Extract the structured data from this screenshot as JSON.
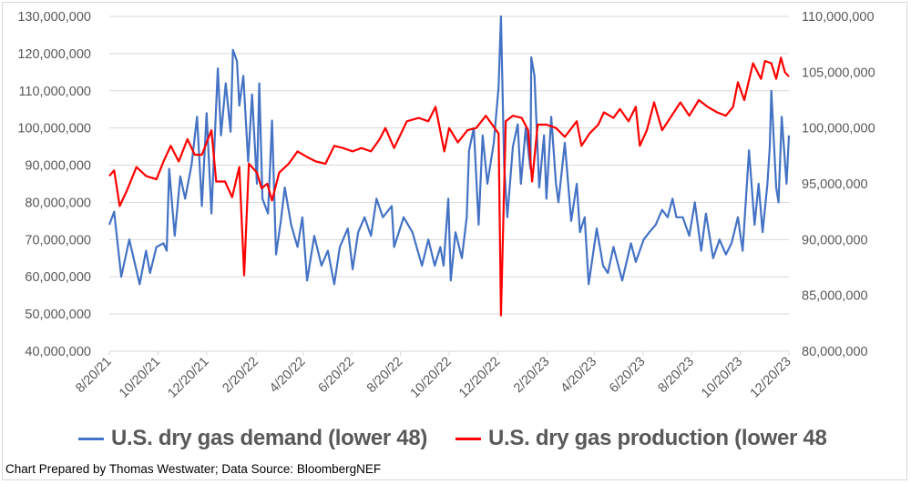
{
  "chart_data": {
    "type": "line",
    "title": "",
    "xlabel": "",
    "ylabel": "",
    "x_tick_labels": [
      "8/20/21",
      "10/20/21",
      "12/20/21",
      "2/20/22",
      "4/20/22",
      "6/20/22",
      "8/20/22",
      "10/20/22",
      "12/20/22",
      "2/20/23",
      "4/20/23",
      "6/20/23",
      "8/20/23",
      "10/20/23",
      "12/20/23"
    ],
    "x_ticks": [
      "2021-08-20",
      "2021-10-20",
      "2021-12-20",
      "2022-02-20",
      "2022-04-20",
      "2022-06-20",
      "2022-08-20",
      "2022-10-20",
      "2022-12-20",
      "2023-02-20",
      "2023-04-20",
      "2023-06-20",
      "2023-08-20",
      "2023-10-20",
      "2023-12-20"
    ],
    "xlim": [
      "2021-08-20",
      "2023-12-20"
    ],
    "y_left": {
      "ylim": [
        40000000,
        130000000
      ],
      "tick_labels": [
        "40,000,000",
        "50,000,000",
        "60,000,000",
        "70,000,000",
        "80,000,000",
        "90,000,000",
        "100,000,000",
        "110,000,000",
        "120,000,000",
        "130,000,000"
      ]
    },
    "y_right": {
      "ylim": [
        80000000,
        110000000
      ],
      "tick_labels": [
        "80,000,000",
        "85,000,000",
        "90,000,000",
        "95,000,000",
        "100,000,000",
        "105,000,000",
        "110,000,000"
      ]
    },
    "grid": true,
    "legend_position": "bottom",
    "series": [
      {
        "name": "U.S. dry gas demand (lower 48)",
        "axis": "left",
        "color": "#4472C4",
        "points": [
          [
            "2021-08-20",
            74000000
          ],
          [
            "2021-08-26",
            77500000
          ],
          [
            "2021-09-04",
            60000000
          ],
          [
            "2021-09-14",
            70000000
          ],
          [
            "2021-09-27",
            58000000
          ],
          [
            "2021-10-05",
            67000000
          ],
          [
            "2021-10-10",
            61000000
          ],
          [
            "2021-10-18",
            68000000
          ],
          [
            "2021-10-27",
            69000000
          ],
          [
            "2021-10-31",
            67000000
          ],
          [
            "2021-11-03",
            89000000
          ],
          [
            "2021-11-10",
            71000000
          ],
          [
            "2021-11-17",
            87000000
          ],
          [
            "2021-11-23",
            81000000
          ],
          [
            "2021-12-01",
            90000000
          ],
          [
            "2021-12-08",
            103000000
          ],
          [
            "2021-12-14",
            79000000
          ],
          [
            "2021-12-20",
            104000000
          ],
          [
            "2021-12-26",
            77000000
          ],
          [
            "2022-01-03",
            116000000
          ],
          [
            "2022-01-07",
            98000000
          ],
          [
            "2022-01-13",
            112000000
          ],
          [
            "2022-01-19",
            99000000
          ],
          [
            "2022-01-22",
            121000000
          ],
          [
            "2022-01-27",
            118000000
          ],
          [
            "2022-01-30",
            106000000
          ],
          [
            "2022-02-04",
            114000000
          ],
          [
            "2022-02-10",
            91000000
          ],
          [
            "2022-02-15",
            109000000
          ],
          [
            "2022-02-21",
            85000000
          ],
          [
            "2022-02-24",
            112000000
          ],
          [
            "2022-02-28",
            81000000
          ],
          [
            "2022-03-07",
            77000000
          ],
          [
            "2022-03-10",
            92000000
          ],
          [
            "2022-03-12",
            102000000
          ],
          [
            "2022-03-17",
            66000000
          ],
          [
            "2022-03-23",
            75000000
          ],
          [
            "2022-03-28",
            84000000
          ],
          [
            "2022-04-05",
            74000000
          ],
          [
            "2022-04-13",
            68000000
          ],
          [
            "2022-04-19",
            76000000
          ],
          [
            "2022-04-25",
            59000000
          ],
          [
            "2022-05-04",
            71000000
          ],
          [
            "2022-05-13",
            63000000
          ],
          [
            "2022-05-21",
            67000000
          ],
          [
            "2022-05-29",
            58000000
          ],
          [
            "2022-06-05",
            68000000
          ],
          [
            "2022-06-15",
            73000000
          ],
          [
            "2022-06-21",
            62000000
          ],
          [
            "2022-06-28",
            72000000
          ],
          [
            "2022-07-06",
            76000000
          ],
          [
            "2022-07-14",
            71000000
          ],
          [
            "2022-07-21",
            81000000
          ],
          [
            "2022-07-29",
            76000000
          ],
          [
            "2022-08-09",
            79000000
          ],
          [
            "2022-08-12",
            68000000
          ],
          [
            "2022-08-24",
            76000000
          ],
          [
            "2022-09-04",
            72000000
          ],
          [
            "2022-09-16",
            63000000
          ],
          [
            "2022-09-24",
            70000000
          ],
          [
            "2022-10-02",
            63000000
          ],
          [
            "2022-10-09",
            68000000
          ],
          [
            "2022-10-13",
            63000000
          ],
          [
            "2022-10-19",
            81000000
          ],
          [
            "2022-10-22",
            59000000
          ],
          [
            "2022-10-28",
            72000000
          ],
          [
            "2022-11-05",
            65000000
          ],
          [
            "2022-11-11",
            76000000
          ],
          [
            "2022-11-14",
            94000000
          ],
          [
            "2022-11-20",
            100000000
          ],
          [
            "2022-11-26",
            74000000
          ],
          [
            "2022-12-01",
            98000000
          ],
          [
            "2022-12-07",
            85000000
          ],
          [
            "2022-12-15",
            96000000
          ],
          [
            "2022-12-21",
            111000000
          ],
          [
            "2022-12-24",
            130000000
          ],
          [
            "2022-12-28",
            90000000
          ],
          [
            "2023-01-01",
            76000000
          ],
          [
            "2023-01-08",
            95000000
          ],
          [
            "2023-01-14",
            101000000
          ],
          [
            "2023-01-18",
            85000000
          ],
          [
            "2023-01-24",
            100000000
          ],
          [
            "2023-01-30",
            89000000
          ],
          [
            "2023-01-31",
            119000000
          ],
          [
            "2023-02-04",
            114000000
          ],
          [
            "2023-02-10",
            84000000
          ],
          [
            "2023-02-16",
            98000000
          ],
          [
            "2023-02-19",
            81000000
          ],
          [
            "2023-02-25",
            103000000
          ],
          [
            "2023-03-03",
            85000000
          ],
          [
            "2023-03-06",
            80000000
          ],
          [
            "2023-03-14",
            96000000
          ],
          [
            "2023-03-22",
            75000000
          ],
          [
            "2023-03-29",
            85000000
          ],
          [
            "2023-04-02",
            72000000
          ],
          [
            "2023-04-08",
            76000000
          ],
          [
            "2023-04-13",
            58000000
          ],
          [
            "2023-04-23",
            73000000
          ],
          [
            "2023-05-01",
            63000000
          ],
          [
            "2023-05-07",
            61000000
          ],
          [
            "2023-05-14",
            68000000
          ],
          [
            "2023-05-25",
            59000000
          ],
          [
            "2023-06-05",
            69000000
          ],
          [
            "2023-06-11",
            64000000
          ],
          [
            "2023-06-21",
            70000000
          ],
          [
            "2023-06-28",
            72000000
          ],
          [
            "2023-07-06",
            74000000
          ],
          [
            "2023-07-14",
            78000000
          ],
          [
            "2023-07-21",
            76000000
          ],
          [
            "2023-07-27",
            81000000
          ],
          [
            "2023-08-01",
            76000000
          ],
          [
            "2023-08-09",
            76000000
          ],
          [
            "2023-08-17",
            71000000
          ],
          [
            "2023-08-24",
            80000000
          ],
          [
            "2023-09-01",
            67000000
          ],
          [
            "2023-09-07",
            77000000
          ],
          [
            "2023-09-16",
            65000000
          ],
          [
            "2023-09-24",
            70000000
          ],
          [
            "2023-10-02",
            66000000
          ],
          [
            "2023-10-09",
            69000000
          ],
          [
            "2023-10-17",
            76000000
          ],
          [
            "2023-10-23",
            67000000
          ],
          [
            "2023-10-31",
            94000000
          ],
          [
            "2023-11-07",
            74000000
          ],
          [
            "2023-11-12",
            85000000
          ],
          [
            "2023-11-17",
            72000000
          ],
          [
            "2023-11-23",
            85000000
          ],
          [
            "2023-11-26",
            95000000
          ],
          [
            "2023-11-28",
            110000000
          ],
          [
            "2023-12-04",
            84000000
          ],
          [
            "2023-12-07",
            80000000
          ],
          [
            "2023-12-11",
            103000000
          ],
          [
            "2023-12-17",
            85000000
          ],
          [
            "2023-12-20",
            98000000
          ]
        ]
      },
      {
        "name": "U.S. dry gas production (lower 48",
        "axis": "right",
        "color": "#FF0000",
        "points": [
          [
            "2021-08-20",
            95700000
          ],
          [
            "2021-08-26",
            96200000
          ],
          [
            "2021-09-02",
            93000000
          ],
          [
            "2021-09-11",
            94400000
          ],
          [
            "2021-09-23",
            96500000
          ],
          [
            "2021-10-05",
            95700000
          ],
          [
            "2021-10-18",
            95400000
          ],
          [
            "2021-10-27",
            97000000
          ],
          [
            "2021-11-05",
            98400000
          ],
          [
            "2021-11-15",
            97000000
          ],
          [
            "2021-11-26",
            99000000
          ],
          [
            "2021-12-05",
            97600000
          ],
          [
            "2021-12-14",
            97600000
          ],
          [
            "2021-12-26",
            99800000
          ],
          [
            "2022-01-01",
            95200000
          ],
          [
            "2022-01-12",
            95200000
          ],
          [
            "2022-01-21",
            93800000
          ],
          [
            "2022-01-30",
            96500000
          ],
          [
            "2022-02-05",
            86800000
          ],
          [
            "2022-02-11",
            96800000
          ],
          [
            "2022-02-21",
            96000000
          ],
          [
            "2022-02-27",
            94600000
          ],
          [
            "2022-03-06",
            95000000
          ],
          [
            "2022-03-12",
            93500000
          ],
          [
            "2022-03-21",
            96000000
          ],
          [
            "2022-04-02",
            96800000
          ],
          [
            "2022-04-13",
            97900000
          ],
          [
            "2022-04-25",
            97400000
          ],
          [
            "2022-05-06",
            97000000
          ],
          [
            "2022-05-18",
            96800000
          ],
          [
            "2022-05-29",
            98400000
          ],
          [
            "2022-06-09",
            98200000
          ],
          [
            "2022-06-21",
            97900000
          ],
          [
            "2022-07-02",
            98200000
          ],
          [
            "2022-07-14",
            97900000
          ],
          [
            "2022-07-25",
            99000000
          ],
          [
            "2022-08-01",
            100000000
          ],
          [
            "2022-08-12",
            98200000
          ],
          [
            "2022-08-28",
            100600000
          ],
          [
            "2022-09-12",
            100900000
          ],
          [
            "2022-09-24",
            100600000
          ],
          [
            "2022-10-03",
            101900000
          ],
          [
            "2022-10-14",
            97900000
          ],
          [
            "2022-10-20",
            100000000
          ],
          [
            "2022-10-31",
            98700000
          ],
          [
            "2022-11-12",
            99800000
          ],
          [
            "2022-11-23",
            100000000
          ],
          [
            "2022-12-05",
            101100000
          ],
          [
            "2022-12-13",
            100300000
          ],
          [
            "2022-12-21",
            99500000
          ],
          [
            "2022-12-24",
            83200000
          ],
          [
            "2022-12-30",
            100600000
          ],
          [
            "2023-01-08",
            101100000
          ],
          [
            "2023-01-19",
            100900000
          ],
          [
            "2023-01-27",
            99800000
          ],
          [
            "2023-02-01",
            95200000
          ],
          [
            "2023-02-08",
            100300000
          ],
          [
            "2023-02-19",
            100300000
          ],
          [
            "2023-03-03",
            100000000
          ],
          [
            "2023-03-14",
            99200000
          ],
          [
            "2023-03-29",
            100600000
          ],
          [
            "2023-04-04",
            98400000
          ],
          [
            "2023-04-14",
            99500000
          ],
          [
            "2023-04-25",
            100300000
          ],
          [
            "2023-05-02",
            101400000
          ],
          [
            "2023-05-14",
            100900000
          ],
          [
            "2023-05-22",
            101700000
          ],
          [
            "2023-06-02",
            100600000
          ],
          [
            "2023-06-11",
            101900000
          ],
          [
            "2023-06-16",
            98400000
          ],
          [
            "2023-06-25",
            99800000
          ],
          [
            "2023-07-04",
            102300000
          ],
          [
            "2023-07-14",
            99800000
          ],
          [
            "2023-07-26",
            101100000
          ],
          [
            "2023-08-06",
            102300000
          ],
          [
            "2023-08-17",
            101100000
          ],
          [
            "2023-08-29",
            102500000
          ],
          [
            "2023-09-09",
            101900000
          ],
          [
            "2023-09-21",
            101400000
          ],
          [
            "2023-10-02",
            101100000
          ],
          [
            "2023-10-11",
            101900000
          ],
          [
            "2023-10-17",
            104100000
          ],
          [
            "2023-10-25",
            102500000
          ],
          [
            "2023-11-05",
            105800000
          ],
          [
            "2023-11-15",
            104400000
          ],
          [
            "2023-11-20",
            106000000
          ],
          [
            "2023-11-28",
            105800000
          ],
          [
            "2023-12-04",
            104400000
          ],
          [
            "2023-12-10",
            106300000
          ],
          [
            "2023-12-15",
            105000000
          ],
          [
            "2023-12-20",
            104600000
          ]
        ]
      }
    ]
  },
  "footer": "Chart Prepared by Thomas Westwater; Data Source: BloombergNEF"
}
